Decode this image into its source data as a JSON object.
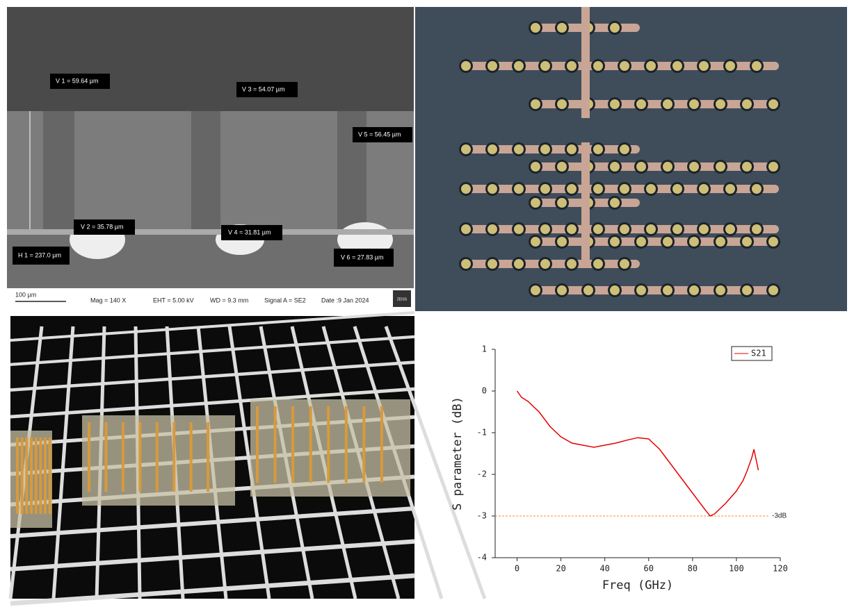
{
  "sem": {
    "measurements": [
      "V 1 = 59.64 µm",
      "V 3 = 54.07 µm",
      "V 5 = 56.45 µm",
      "V 2 = 35.78 µm",
      "V 4 = 31.81 µm",
      "H 1 = 237.0 µm",
      "V 6 = 27.83 µm"
    ],
    "scale_bar": "100 µm",
    "mag": "Mag =  140 X",
    "eht": "EHT = 5.00 kV",
    "wd": "WD = 9.3 mm",
    "signal": "Signal A = SE2",
    "date": "Date :9 Jan 2024",
    "logo": "ZEISS"
  },
  "chart_data": {
    "type": "line",
    "x_label": "Freq (GHz)",
    "y_label": "S parameter (dB)",
    "x": [
      0,
      2,
      5,
      10,
      15,
      20,
      25,
      30,
      35,
      40,
      45,
      50,
      55,
      60,
      65,
      70,
      75,
      80,
      85,
      88,
      90,
      95,
      100,
      103,
      105,
      107,
      108,
      110
    ],
    "series": [
      {
        "name": "S21",
        "color": "#e60000",
        "values": [
          0,
          -0.15,
          -0.25,
          -0.5,
          -0.85,
          -1.1,
          -1.25,
          -1.3,
          -1.35,
          -1.3,
          -1.25,
          -1.18,
          -1.12,
          -1.15,
          -1.4,
          -1.75,
          -2.1,
          -2.45,
          -2.8,
          -3.0,
          -2.95,
          -2.7,
          -2.4,
          -2.15,
          -1.9,
          -1.6,
          -1.4,
          -1.9
        ]
      }
    ],
    "xlim": [
      -10,
      120
    ],
    "ylim": [
      -4,
      1
    ],
    "xticks": [
      0,
      20,
      40,
      60,
      80,
      100,
      120
    ],
    "yticks": [
      -4,
      -3,
      -2,
      -1,
      0,
      1
    ],
    "reference_line": {
      "value": -3,
      "label": "-3dB",
      "color": "#f0932b"
    },
    "legend": "top right"
  }
}
